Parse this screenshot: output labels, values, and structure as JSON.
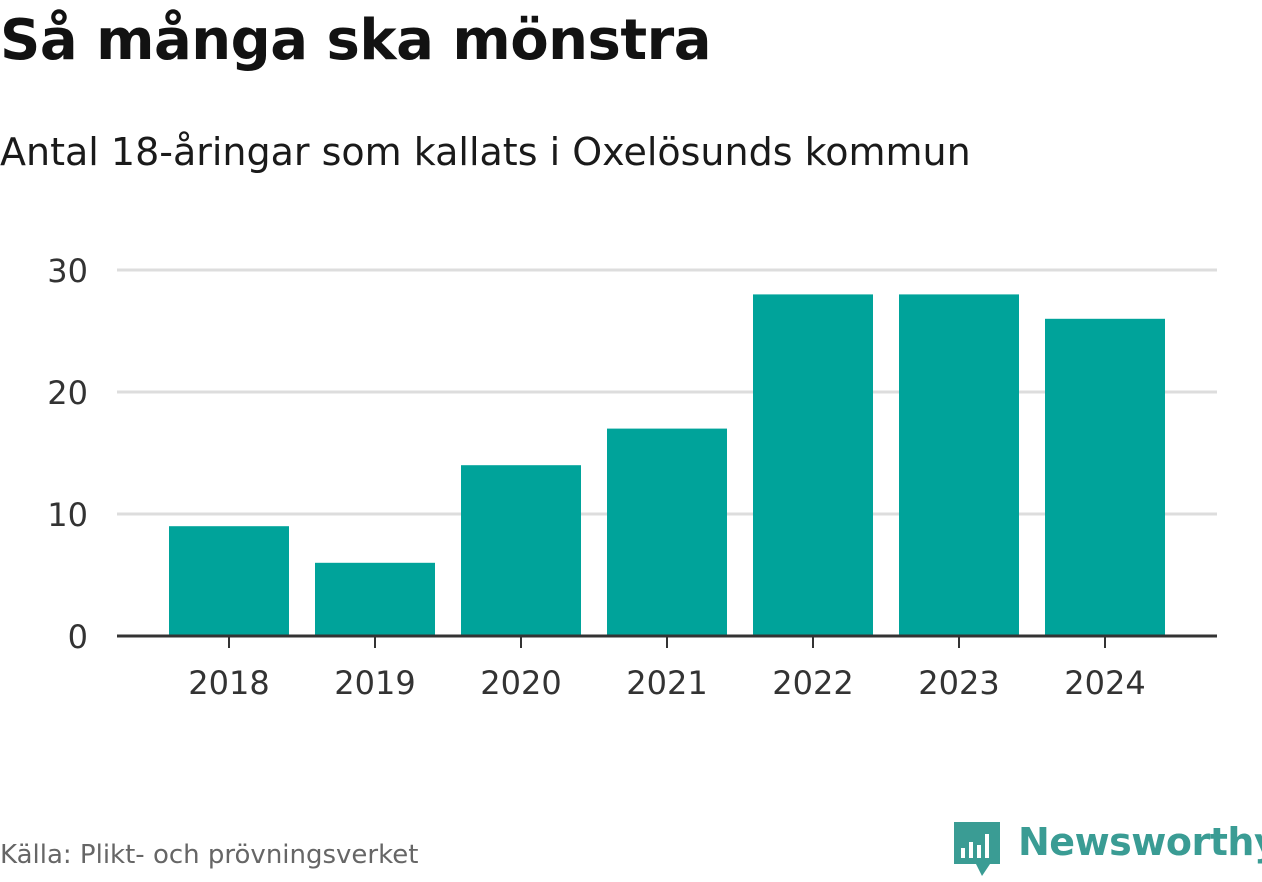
{
  "title": "Så många ska mönstra",
  "subtitle": "Antal 18-åringar som kallats i Oxelösunds kommun",
  "source": "Källa: Plikt- och prövningsverket",
  "brand": {
    "name": "Newsworthy",
    "icon": "newsworthy-logo-icon"
  },
  "colors": {
    "bar": "#00a39a",
    "grid": "#dddddd",
    "axis": "#333333",
    "brand": "#3a9c94"
  },
  "chart_data": {
    "type": "bar",
    "title": "Så många ska mönstra",
    "subtitle": "Antal 18-åringar som kallats i Oxelösunds kommun",
    "categories": [
      "2018",
      "2019",
      "2020",
      "2021",
      "2022",
      "2023",
      "2024"
    ],
    "values": [
      9,
      6,
      14,
      17,
      28,
      28,
      26
    ],
    "yticks": [
      "0",
      "10",
      "20",
      "30"
    ],
    "ylim": [
      0,
      30
    ],
    "xlabel": "",
    "ylabel": "",
    "grid": true
  }
}
